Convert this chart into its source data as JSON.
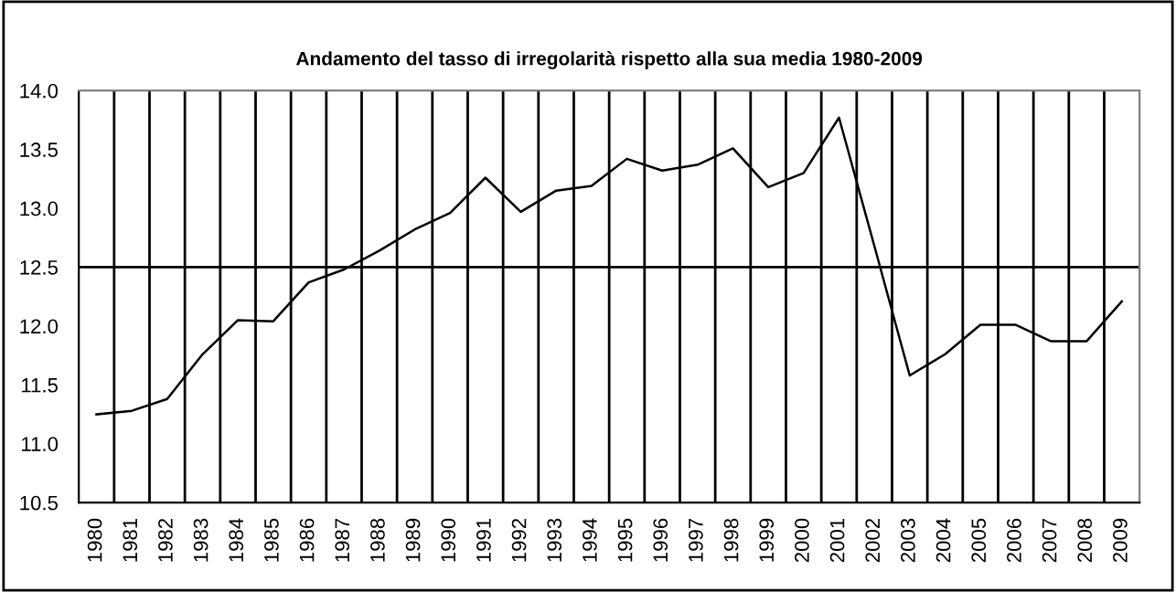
{
  "chart_data": {
    "type": "line",
    "title": "Andamento del tasso di irregolarità rispetto alla sua media 1980-2009",
    "categories": [
      "1980",
      "1981",
      "1982",
      "1983",
      "1984",
      "1985",
      "1986",
      "1987",
      "1988",
      "1989",
      "1990",
      "1991",
      "1992",
      "1993",
      "1994",
      "1995",
      "1996",
      "1997",
      "1998",
      "1999",
      "2000",
      "2001",
      "2002",
      "2003",
      "2004",
      "2005",
      "2006",
      "2007",
      "2008",
      "2009"
    ],
    "series": [
      {
        "color": "#000000",
        "values": [
          11.25,
          11.28,
          11.38,
          11.76,
          12.05,
          12.04,
          12.37,
          12.48,
          12.64,
          12.82,
          12.96,
          13.26,
          12.97,
          13.15,
          13.19,
          13.42,
          13.32,
          13.37,
          13.51,
          13.18,
          13.3,
          13.77,
          12.68,
          11.58,
          11.76,
          12.01,
          12.01,
          11.87,
          11.87,
          12.21
        ]
      }
    ],
    "ylim": [
      10.5,
      14.0
    ],
    "yticks": [
      {
        "value": 10.5,
        "label": "10.5"
      },
      {
        "value": 11.0,
        "label": "11.0"
      },
      {
        "value": 11.5,
        "label": "11.5"
      },
      {
        "value": 12.0,
        "label": "12.0"
      },
      {
        "value": 12.5,
        "label": "12.5"
      },
      {
        "value": 13.0,
        "label": "13.0"
      },
      {
        "value": 13.5,
        "label": "13.5"
      },
      {
        "value": 14.0,
        "label": "14.0"
      }
    ],
    "ref_lines": [
      {
        "axis": "y",
        "value": 12.5,
        "color": "#000000"
      }
    ],
    "grid": "x",
    "marker": "none",
    "line_style": "solid"
  }
}
